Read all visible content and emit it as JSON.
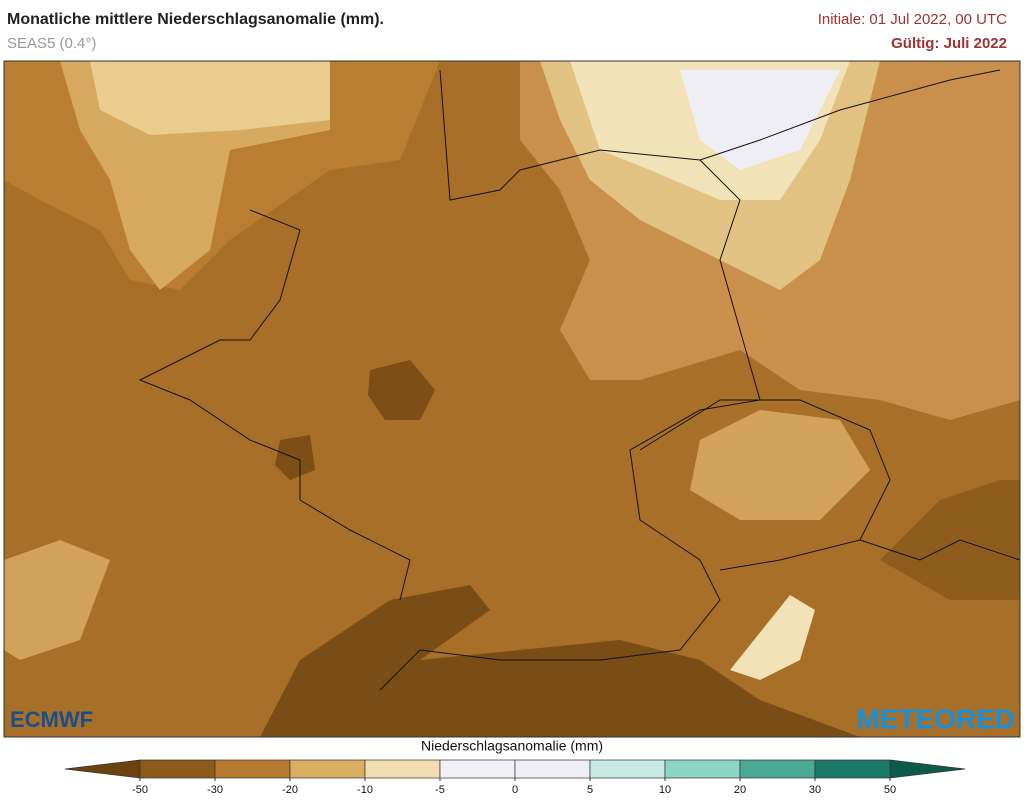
{
  "header": {
    "title": "Monatliche mittlere Niederschlagsanomalie (mm).",
    "subtitle": "SEAS5 (0.4°)",
    "init": "Initiale: 01 Jul 2022, 00 UTC",
    "valid": "Gültig: Juli 2022"
  },
  "logos": {
    "left": "ECMWF",
    "right": "METEORED"
  },
  "legend": {
    "label": "Niederschlagsanomalie (mm)",
    "ticks": [
      -50,
      -30,
      -20,
      -10,
      -5,
      0,
      5,
      10,
      20,
      30,
      50
    ],
    "colors": [
      "#6b4210",
      "#8c5a1a",
      "#b57a2f",
      "#d9ad62",
      "#f1ddb0",
      "#f2f0f4",
      "#eeeef6",
      "#c7ebe2",
      "#8dd5c3",
      "#4aa893",
      "#1c7866",
      "#0b5a4a"
    ]
  }
}
